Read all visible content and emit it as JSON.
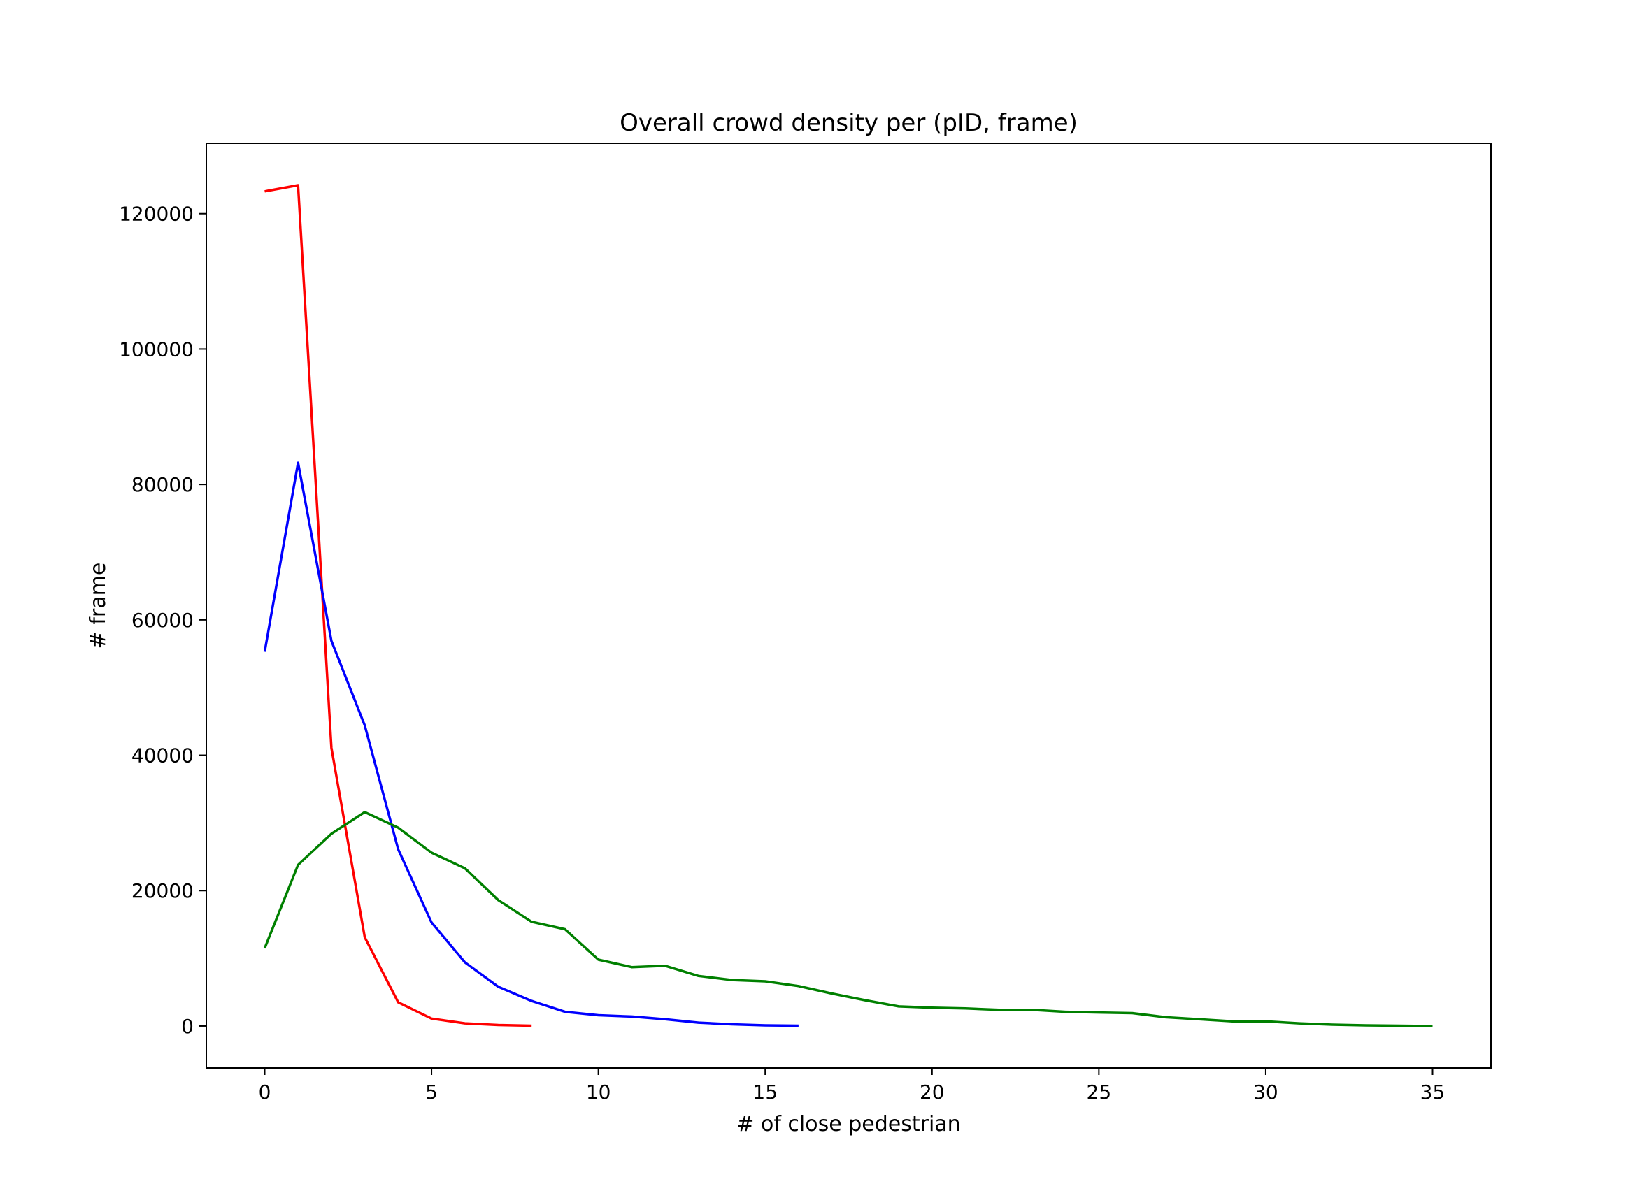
{
  "chart_data": {
    "type": "line",
    "title": "Overall crowd density per (pID, frame)",
    "xlabel": "# of close pedestrian",
    "ylabel": "# frame",
    "xlim": [
      -1.75,
      36.75
    ],
    "ylim": [
      -6200,
      130400
    ],
    "xticks": [
      0,
      5,
      10,
      15,
      20,
      25,
      30,
      35
    ],
    "yticks": [
      0,
      20000,
      40000,
      60000,
      80000,
      100000,
      120000
    ],
    "grid": false,
    "legend": "none",
    "series": [
      {
        "color": "#ff0000",
        "x": [
          0,
          1,
          2,
          3,
          4,
          5,
          6,
          7,
          8
        ],
        "y": [
          123300,
          124200,
          41100,
          13100,
          3500,
          1100,
          400,
          150,
          50
        ]
      },
      {
        "color": "#0000ff",
        "x": [
          0,
          1,
          2,
          3,
          4,
          5,
          6,
          7,
          8,
          9,
          10,
          11,
          12,
          13,
          14,
          15,
          16
        ],
        "y": [
          55300,
          83200,
          56900,
          44400,
          26100,
          15300,
          9400,
          5800,
          3700,
          2100,
          1600,
          1400,
          1000,
          500,
          250,
          100,
          50
        ]
      },
      {
        "color": "#008000",
        "x": [
          0,
          1,
          2,
          3,
          4,
          5,
          6,
          7,
          8,
          9,
          10,
          11,
          12,
          13,
          14,
          15,
          16,
          17,
          18,
          19,
          20,
          21,
          22,
          23,
          24,
          25,
          26,
          27,
          28,
          29,
          30,
          31,
          32,
          33,
          34,
          35
        ],
        "y": [
          11500,
          23800,
          28400,
          31600,
          29300,
          25600,
          23300,
          18600,
          15400,
          14300,
          9800,
          8700,
          8900,
          7400,
          6800,
          6600,
          5900,
          4800,
          3800,
          2900,
          2700,
          2600,
          2400,
          2400,
          2100,
          2000,
          1900,
          1300,
          1000,
          700,
          700,
          400,
          200,
          100,
          50,
          0
        ]
      }
    ]
  }
}
